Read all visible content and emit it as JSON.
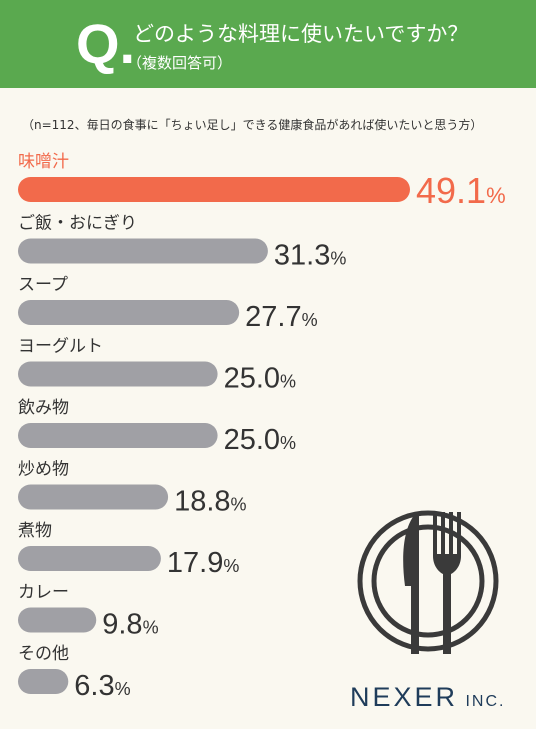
{
  "header": {
    "q_mark": "Q.",
    "title": "どのような料理に使いたいですか？",
    "subtitle": "（複数回答可）"
  },
  "note": "（n=112、毎日の食事に「ちょい足し」できる健康食品があれば使いたいと思う方）",
  "brand": {
    "main": "NEXER",
    "suffix": "INC."
  },
  "colors": {
    "highlight": "#f26a4b",
    "bar": "#a0a0a5",
    "label_highlight": "#f26a4b",
    "label": "#333333"
  },
  "icons": [
    "plate-fork-knife-icon"
  ],
  "chart_data": {
    "type": "bar",
    "orientation": "horizontal",
    "unit": "%",
    "categories": [
      "味噌汁",
      "ご飯・おにぎり",
      "スープ",
      "ヨーグルト",
      "飲み物",
      "炒め物",
      "煮物",
      "カレー",
      "その他"
    ],
    "values": [
      49.1,
      31.3,
      27.7,
      25.0,
      25.0,
      18.8,
      17.9,
      9.8,
      6.3
    ],
    "value_labels": [
      "49.1",
      "31.3",
      "27.7",
      "25.0",
      "25.0",
      "18.8",
      "17.9",
      "9.8",
      "6.3"
    ],
    "highlight_index": 0,
    "xlim": [
      0,
      49.1
    ],
    "grid": false,
    "legend": "none"
  }
}
